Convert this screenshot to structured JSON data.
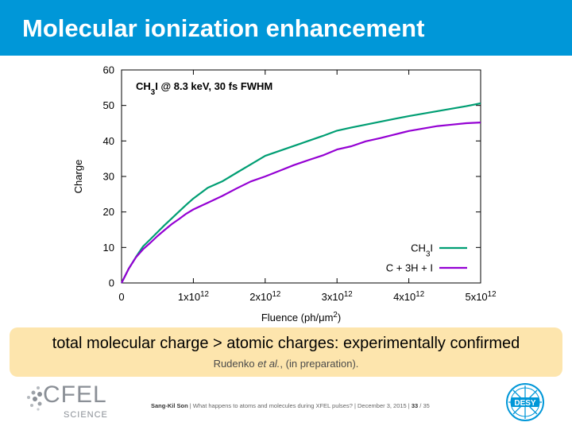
{
  "slide": {
    "title": "Molecular ionization enhancement",
    "callout_main": "total molecular charge > atomic charges: experimentally confirmed",
    "callout_ref_author": "Rudenko",
    "callout_ref_etal": "et al.",
    "callout_ref_rest": ", (in preparation).",
    "footer_author": "Sang-Kil Son",
    "footer_sep1": " | ",
    "footer_talk": "What happens to atoms and molecules during XFEL pulses?",
    "footer_sep2": " | ",
    "footer_date": "December 3, 2015",
    "footer_sep3": " | ",
    "footer_page": "33",
    "footer_total": " / 35",
    "logo_cfel": "CFEL",
    "logo_cfel_sub": "SCIENCE",
    "logo_desy": "DESY"
  },
  "chart_data": {
    "type": "line",
    "annotation_parts": [
      "CH",
      "3",
      "I @ 8.3 keV, 30 fs FWHM"
    ],
    "xlabel_parts": [
      "Fluence (ph/μm",
      "2",
      ")"
    ],
    "ylabel": "Charge",
    "xlim": [
      0,
      5000000000000.0
    ],
    "ylim": [
      0,
      60
    ],
    "grid": false,
    "legend_position": "bottom-right",
    "x_ticks": [
      {
        "value": 0,
        "mantissa": "0",
        "exp": ""
      },
      {
        "value": 1000000000000.0,
        "mantissa": "1x10",
        "exp": "12"
      },
      {
        "value": 2000000000000.0,
        "mantissa": "2x10",
        "exp": "12"
      },
      {
        "value": 3000000000000.0,
        "mantissa": "3x10",
        "exp": "12"
      },
      {
        "value": 4000000000000.0,
        "mantissa": "4x10",
        "exp": "12"
      },
      {
        "value": 5000000000000.0,
        "mantissa": "5x10",
        "exp": "12"
      }
    ],
    "y_ticks": [
      0,
      10,
      20,
      30,
      40,
      50,
      60
    ],
    "x": [
      0,
      100000000000.0,
      200000000000.0,
      300000000000.0,
      400000000000.0,
      500000000000.0,
      600000000000.0,
      700000000000.0,
      800000000000.0,
      900000000000.0,
      1000000000000.0,
      1200000000000.0,
      1400000000000.0,
      1600000000000.0,
      1800000000000.0,
      2000000000000.0,
      2200000000000.0,
      2400000000000.0,
      2600000000000.0,
      2800000000000.0,
      3000000000000.0,
      3200000000000.0,
      3400000000000.0,
      3600000000000.0,
      3800000000000.0,
      4000000000000.0,
      4200000000000.0,
      4400000000000.0,
      4600000000000.0,
      4800000000000.0,
      5000000000000.0
    ],
    "series": [
      {
        "name_parts": [
          "CH",
          "3",
          "I"
        ],
        "color": "#009e73",
        "values": [
          0,
          4,
          7.3,
          10.3,
          12.3,
          14.3,
          16.3,
          18.2,
          20.1,
          22,
          23.8,
          26.8,
          28.6,
          31,
          33.4,
          35.8,
          37.2,
          38.6,
          40,
          41.4,
          42.9,
          43.8,
          44.6,
          45.4,
          46.2,
          47,
          47.7,
          48.4,
          49.1,
          49.8,
          50.6
        ]
      },
      {
        "name_parts": [
          "C + 3H + I"
        ],
        "color": "#9400d3",
        "values": [
          0,
          4,
          7.2,
          9.5,
          11.3,
          13.2,
          14.9,
          16.6,
          18,
          19.5,
          20.7,
          22.6,
          24.5,
          26.6,
          28.6,
          30,
          31.6,
          33.2,
          34.6,
          35.9,
          37.6,
          38.5,
          39.9,
          40.8,
          41.8,
          42.8,
          43.5,
          44.2,
          44.6,
          45,
          45.2
        ]
      }
    ]
  }
}
